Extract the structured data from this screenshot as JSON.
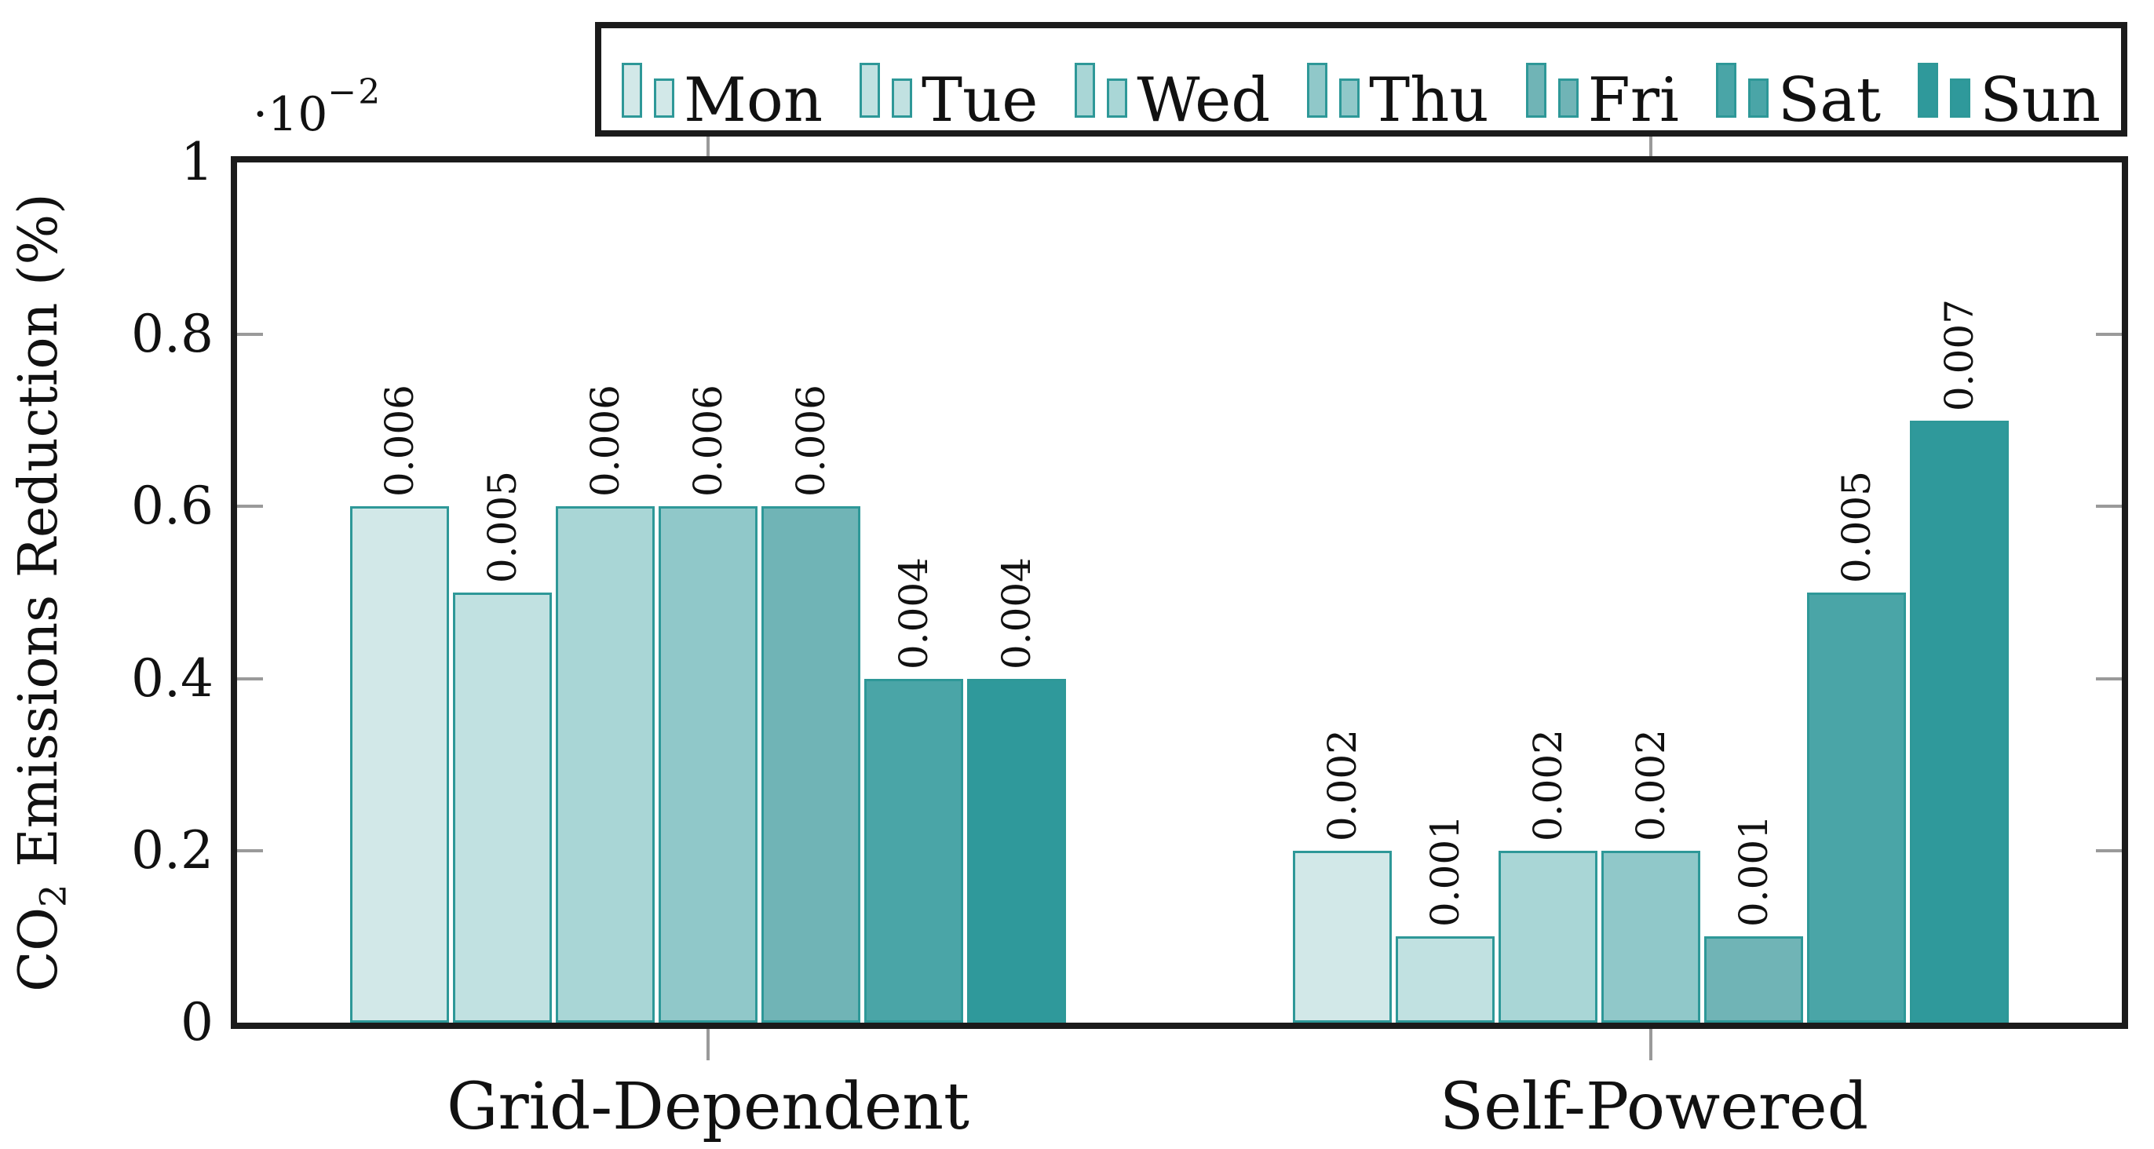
{
  "figure": {
    "y_axis_title_pre": "CO",
    "y_axis_title_sub": "2",
    "y_axis_title_post": " Emissions Reduction (%)",
    "y_multiplier_base": "·10",
    "y_multiplier_exp": "−2"
  },
  "chart_data": {
    "type": "bar",
    "title": "",
    "xlabel": "",
    "ylabel": "CO2 Emissions Reduction (%)",
    "y_multiplier": "x10^-2",
    "ylim": [
      0,
      0.01
    ],
    "grid": false,
    "legend_position": "top",
    "categories": [
      "Grid-Dependent",
      "Self-Powered"
    ],
    "series": [
      {
        "name": "Mon",
        "color": "#d2e8e8",
        "values": [
          0.006,
          0.002
        ],
        "labels": [
          "0.006",
          "0.002"
        ]
      },
      {
        "name": "Tue",
        "color": "#c1e1e1",
        "values": [
          0.005,
          0.001
        ],
        "labels": [
          "0.005",
          "0.001"
        ]
      },
      {
        "name": "Wed",
        "color": "#a9d6d6",
        "values": [
          0.006,
          0.002
        ],
        "labels": [
          "0.006",
          "0.002"
        ]
      },
      {
        "name": "Thu",
        "color": "#90c8c9",
        "values": [
          0.006,
          0.002
        ],
        "labels": [
          "0.006",
          "0.002"
        ]
      },
      {
        "name": "Fri",
        "color": "#70b4b6",
        "values": [
          0.006,
          0.001
        ],
        "labels": [
          "0.006",
          "0.001"
        ]
      },
      {
        "name": "Sat",
        "color": "#4aa5a7",
        "values": [
          0.004,
          0.005
        ],
        "labels": [
          "0.004",
          "0.005"
        ]
      },
      {
        "name": "Sun",
        "color": "#2f999b",
        "values": [
          0.004,
          0.007
        ],
        "labels": [
          "0.004",
          "0.007"
        ]
      }
    ],
    "yticks": [
      {
        "value": 0,
        "label": "0"
      },
      {
        "value": 0.002,
        "label": "0.2"
      },
      {
        "value": 0.004,
        "label": "0.4"
      },
      {
        "value": 0.006,
        "label": "0.6"
      },
      {
        "value": 0.008,
        "label": "0.8"
      },
      {
        "value": 0.01,
        "label": "1"
      }
    ],
    "bar_border_color": "#2e9898",
    "axis_color": "#1b1b1b",
    "tick_color": "#9a9a9a"
  }
}
